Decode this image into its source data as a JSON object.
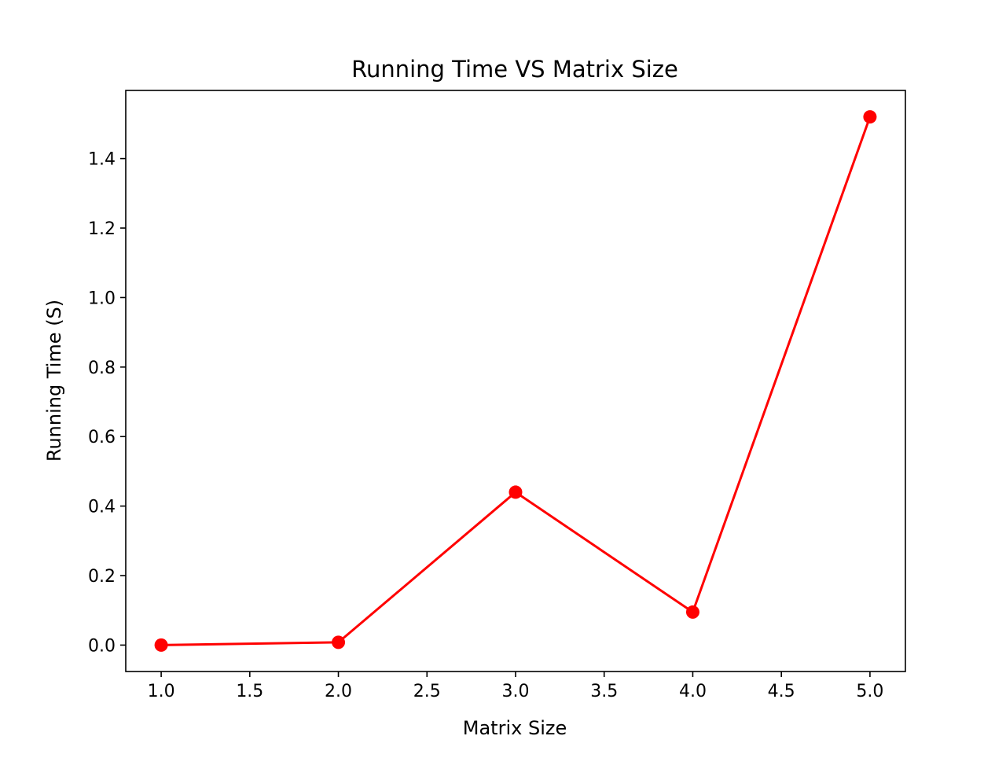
{
  "chart_data": {
    "type": "line",
    "title": "Running Time VS Matrix Size",
    "xlabel": "Matrix Size",
    "ylabel": "Running Time (S)",
    "x": [
      1.0,
      2.0,
      3.0,
      4.0,
      5.0
    ],
    "series": [
      {
        "values": [
          0.0,
          0.008,
          0.44,
          0.095,
          1.52
        ],
        "color": "#ff0000",
        "marker": "circle"
      }
    ],
    "xlim": [
      0.8,
      5.2
    ],
    "ylim": [
      -0.076,
      1.596
    ],
    "xticks": [
      1.0,
      1.5,
      2.0,
      2.5,
      3.0,
      3.5,
      4.0,
      4.5,
      5.0
    ],
    "xtick_labels": [
      "1.0",
      "1.5",
      "2.0",
      "2.5",
      "3.0",
      "3.5",
      "4.0",
      "4.5",
      "5.0"
    ],
    "yticks": [
      0.0,
      0.2,
      0.4,
      0.6,
      0.8,
      1.0,
      1.2,
      1.4
    ],
    "ytick_labels": [
      "0.0",
      "0.2",
      "0.4",
      "0.6",
      "0.8",
      "1.0",
      "1.2",
      "1.4"
    ],
    "grid": false,
    "legend": false
  }
}
